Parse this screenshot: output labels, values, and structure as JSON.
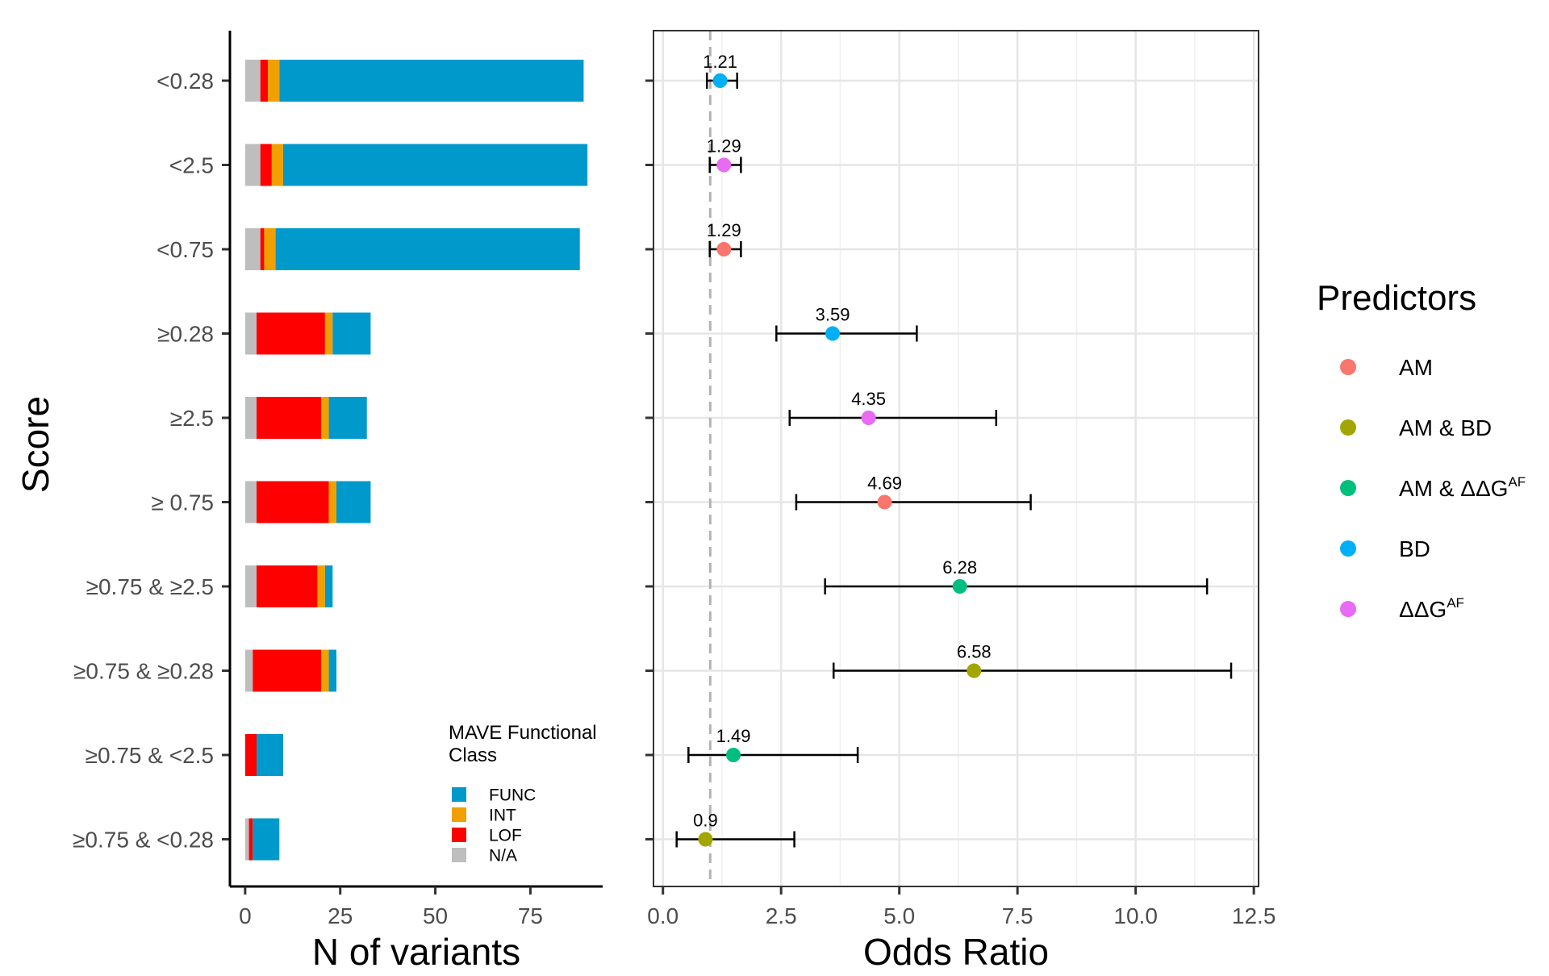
{
  "chart_data": [
    {
      "type": "bar",
      "orientation": "horizontal",
      "stacked": true,
      "ylabel": "Score",
      "xlabel": "N of variants",
      "xlim": [
        -4,
        94
      ],
      "xticks": [
        0,
        25,
        50,
        75
      ],
      "categories": [
        "<0.28",
        "<2.5",
        "<0.75",
        "≥0.28",
        "≥2.5",
        "≥ 0.75",
        "≥0.75 & ≥2.5",
        "≥0.75 & ≥0.28",
        "≥0.75 & <2.5",
        "≥0.75 & <0.28"
      ],
      "series": [
        {
          "name": "N/A",
          "color": "#bebebe",
          "values": [
            4,
            4,
            4,
            3,
            3,
            3,
            3,
            2,
            0,
            1
          ]
        },
        {
          "name": "LOF",
          "color": "#ff0000",
          "values": [
            2,
            3,
            1,
            18,
            17,
            19,
            16,
            18,
            3,
            1
          ]
        },
        {
          "name": "INT",
          "color": "#f0a000",
          "values": [
            3,
            3,
            3,
            2,
            2,
            2,
            2,
            2,
            0,
            0
          ]
        },
        {
          "name": "FUNC",
          "color": "#0099cc",
          "values": [
            80,
            80,
            80,
            10,
            10,
            9,
            2,
            2,
            7,
            7
          ]
        }
      ],
      "legend": {
        "title_line1": "MAVE Functional",
        "title_line2": "Class",
        "items": [
          {
            "label": "FUNC",
            "color": "#0099cc"
          },
          {
            "label": "INT",
            "color": "#f0a000"
          },
          {
            "label": "LOF",
            "color": "#ff0000"
          },
          {
            "label": "N/A",
            "color": "#bebebe"
          }
        ],
        "placement": "bottom-right"
      }
    },
    {
      "type": "scatter",
      "subtype": "forest",
      "xlabel": "Odds Ratio",
      "xlim": [
        -0.2,
        12.6
      ],
      "xticks": [
        0.0,
        2.5,
        5.0,
        7.5,
        10.0,
        12.5
      ],
      "xtick_labels": [
        "0.0",
        "2.5",
        "5.0",
        "7.5",
        "10.0",
        "12.5"
      ],
      "reference_line": 1,
      "grid": true,
      "points": [
        {
          "row": 0,
          "or": 1.21,
          "label": "1.21",
          "lo": 0.93,
          "hi": 1.57,
          "predictor": "BD"
        },
        {
          "row": 1,
          "or": 1.29,
          "label": "1.29",
          "lo": 0.99,
          "hi": 1.65,
          "predictor": "ΔΔGAF"
        },
        {
          "row": 2,
          "or": 1.29,
          "label": "1.29",
          "lo": 0.99,
          "hi": 1.65,
          "predictor": "AM"
        },
        {
          "row": 3,
          "or": 3.59,
          "label": "3.59",
          "lo": 2.4,
          "hi": 5.37,
          "predictor": "BD"
        },
        {
          "row": 4,
          "or": 4.35,
          "label": "4.35",
          "lo": 2.68,
          "hi": 7.05,
          "predictor": "ΔΔGAF"
        },
        {
          "row": 5,
          "or": 4.69,
          "label": "4.69",
          "lo": 2.82,
          "hi": 7.78,
          "predictor": "AM"
        },
        {
          "row": 6,
          "or": 6.28,
          "label": "6.28",
          "lo": 3.43,
          "hi": 11.51,
          "predictor": "AM & ΔΔGAF"
        },
        {
          "row": 7,
          "or": 6.58,
          "label": "6.58",
          "lo": 3.61,
          "hi": 12.02,
          "predictor": "AM & BD"
        },
        {
          "row": 8,
          "or": 1.49,
          "label": "1.49",
          "lo": 0.54,
          "hi": 4.12,
          "predictor": "AM & ΔΔGAF"
        },
        {
          "row": 9,
          "or": 0.9,
          "label": "0.9",
          "lo": 0.29,
          "hi": 2.78,
          "predictor": "AM & BD"
        }
      ],
      "legend": {
        "title": "Predictors",
        "items": [
          {
            "key": "AM",
            "label": "AM",
            "sup": "",
            "color": "#f8766d"
          },
          {
            "key": "AM & BD",
            "label": "AM & BD",
            "sup": "",
            "color": "#a3a500"
          },
          {
            "key": "AM & ΔΔGAF",
            "label": "AM & ΔΔG",
            "sup": "AF",
            "color": "#00bf7d"
          },
          {
            "key": "BD",
            "label": "BD",
            "sup": "",
            "color": "#00b0f6"
          },
          {
            "key": "ΔΔGAF",
            "label": "ΔΔG",
            "sup": "AF",
            "color": "#e76bf3"
          }
        ],
        "placement": "right"
      }
    }
  ]
}
